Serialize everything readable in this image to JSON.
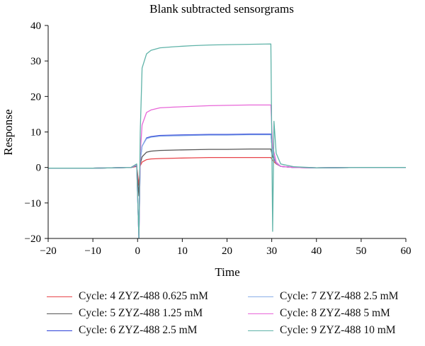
{
  "chart_data": {
    "type": "line",
    "title": "Blank subtracted sensorgrams",
    "xlabel": "Time",
    "ylabel": "Response",
    "xlim": [
      -20,
      60
    ],
    "ylim": [
      -20,
      40
    ],
    "x_ticks": [
      -20,
      -10,
      0,
      10,
      20,
      30,
      40,
      50,
      60
    ],
    "y_ticks": [
      -20,
      -10,
      0,
      10,
      20,
      30,
      40
    ],
    "grid": false,
    "legend_position": "bottom",
    "series": [
      {
        "name": "Cycle: 4 ZYZ-488 0.625 mM",
        "color": "#e8444a",
        "x": [
          -20,
          -10,
          -1.5,
          -0.2,
          0.3,
          0.6,
          1,
          2,
          3,
          5,
          8,
          12,
          16,
          20,
          25,
          29.8,
          30.2,
          31,
          32,
          35,
          40,
          50,
          60
        ],
        "y": [
          -0.2,
          -0.2,
          0,
          0.3,
          -5,
          0.5,
          1.5,
          2.2,
          2.4,
          2.5,
          2.6,
          2.7,
          2.8,
          2.8,
          2.8,
          2.8,
          2,
          1,
          0.3,
          0,
          -0.1,
          0,
          0
        ]
      },
      {
        "name": "Cycle: 5 ZYZ-488 1.25 mM",
        "color": "#555555",
        "x": [
          -20,
          -10,
          -1.5,
          -0.2,
          0.3,
          0.6,
          1,
          2,
          3,
          5,
          8,
          12,
          16,
          20,
          25,
          29.8,
          30.2,
          31,
          32,
          35,
          40,
          50,
          60
        ],
        "y": [
          -0.2,
          -0.2,
          0,
          0.5,
          -8,
          1,
          3,
          4.3,
          4.6,
          4.8,
          4.9,
          5,
          5.1,
          5.1,
          5.2,
          5.2,
          3,
          1.2,
          0.3,
          0,
          -0.1,
          0,
          0
        ]
      },
      {
        "name": "Cycle: 6 ZYZ-488 2.5 mM",
        "color": "#2b3ed8",
        "x": [
          -20,
          -10,
          -1.5,
          -0.2,
          0.3,
          0.6,
          1,
          2,
          3,
          5,
          8,
          12,
          16,
          20,
          25,
          29.8,
          30.2,
          31,
          32,
          35,
          40,
          50,
          60
        ],
        "y": [
          -0.2,
          -0.2,
          0,
          0.6,
          -20,
          2,
          6,
          8.3,
          8.7,
          9,
          9.1,
          9.2,
          9.3,
          9.3,
          9.4,
          9.4,
          4,
          1.2,
          0.3,
          0,
          -0.1,
          0,
          0
        ]
      },
      {
        "name": "Cycle: 7 ZYZ-488 2.5 mM",
        "color": "#8aaee8",
        "x": [
          -20,
          -10,
          -1.5,
          -0.2,
          0.3,
          0.6,
          1,
          2,
          3,
          5,
          8,
          12,
          16,
          20,
          25,
          29.8,
          30.2,
          31,
          32,
          35,
          40,
          50,
          60
        ],
        "y": [
          -0.2,
          -0.2,
          0,
          0.6,
          -20,
          2,
          6,
          8.1,
          8.5,
          8.8,
          8.9,
          9,
          9.1,
          9.1,
          9.2,
          9.2,
          4,
          1.2,
          0.3,
          0,
          -0.1,
          0,
          0
        ]
      },
      {
        "name": "Cycle: 8 ZYZ-488 5 mM",
        "color": "#e866d8",
        "x": [
          -20,
          -10,
          -1.5,
          -0.2,
          0.3,
          0.6,
          1,
          2,
          3,
          5,
          8,
          12,
          16,
          20,
          25,
          29.8,
          30.2,
          31,
          32,
          35,
          40,
          50,
          60
        ],
        "y": [
          -0.2,
          -0.2,
          0,
          0.8,
          -20,
          4,
          12,
          15.5,
          16.2,
          16.8,
          17,
          17.2,
          17.4,
          17.5,
          17.6,
          17.6,
          6,
          1.5,
          0.3,
          0,
          -0.1,
          0,
          0
        ]
      },
      {
        "name": "Cycle: 9 ZYZ-488 10 mM",
        "color": "#5fb3a8",
        "x": [
          -20,
          -10,
          -1.5,
          -0.2,
          0.3,
          0.6,
          1,
          2,
          3,
          5,
          8,
          12,
          16,
          20,
          25,
          29.8,
          30.2,
          30.5,
          31,
          32,
          35,
          40,
          50,
          60
        ],
        "y": [
          -0.2,
          -0.2,
          0,
          1,
          -20,
          10,
          28,
          32,
          33,
          33.7,
          34,
          34.3,
          34.5,
          34.6,
          34.7,
          34.8,
          -18,
          13,
          4,
          1,
          0.2,
          -0.1,
          0,
          0
        ]
      }
    ]
  }
}
